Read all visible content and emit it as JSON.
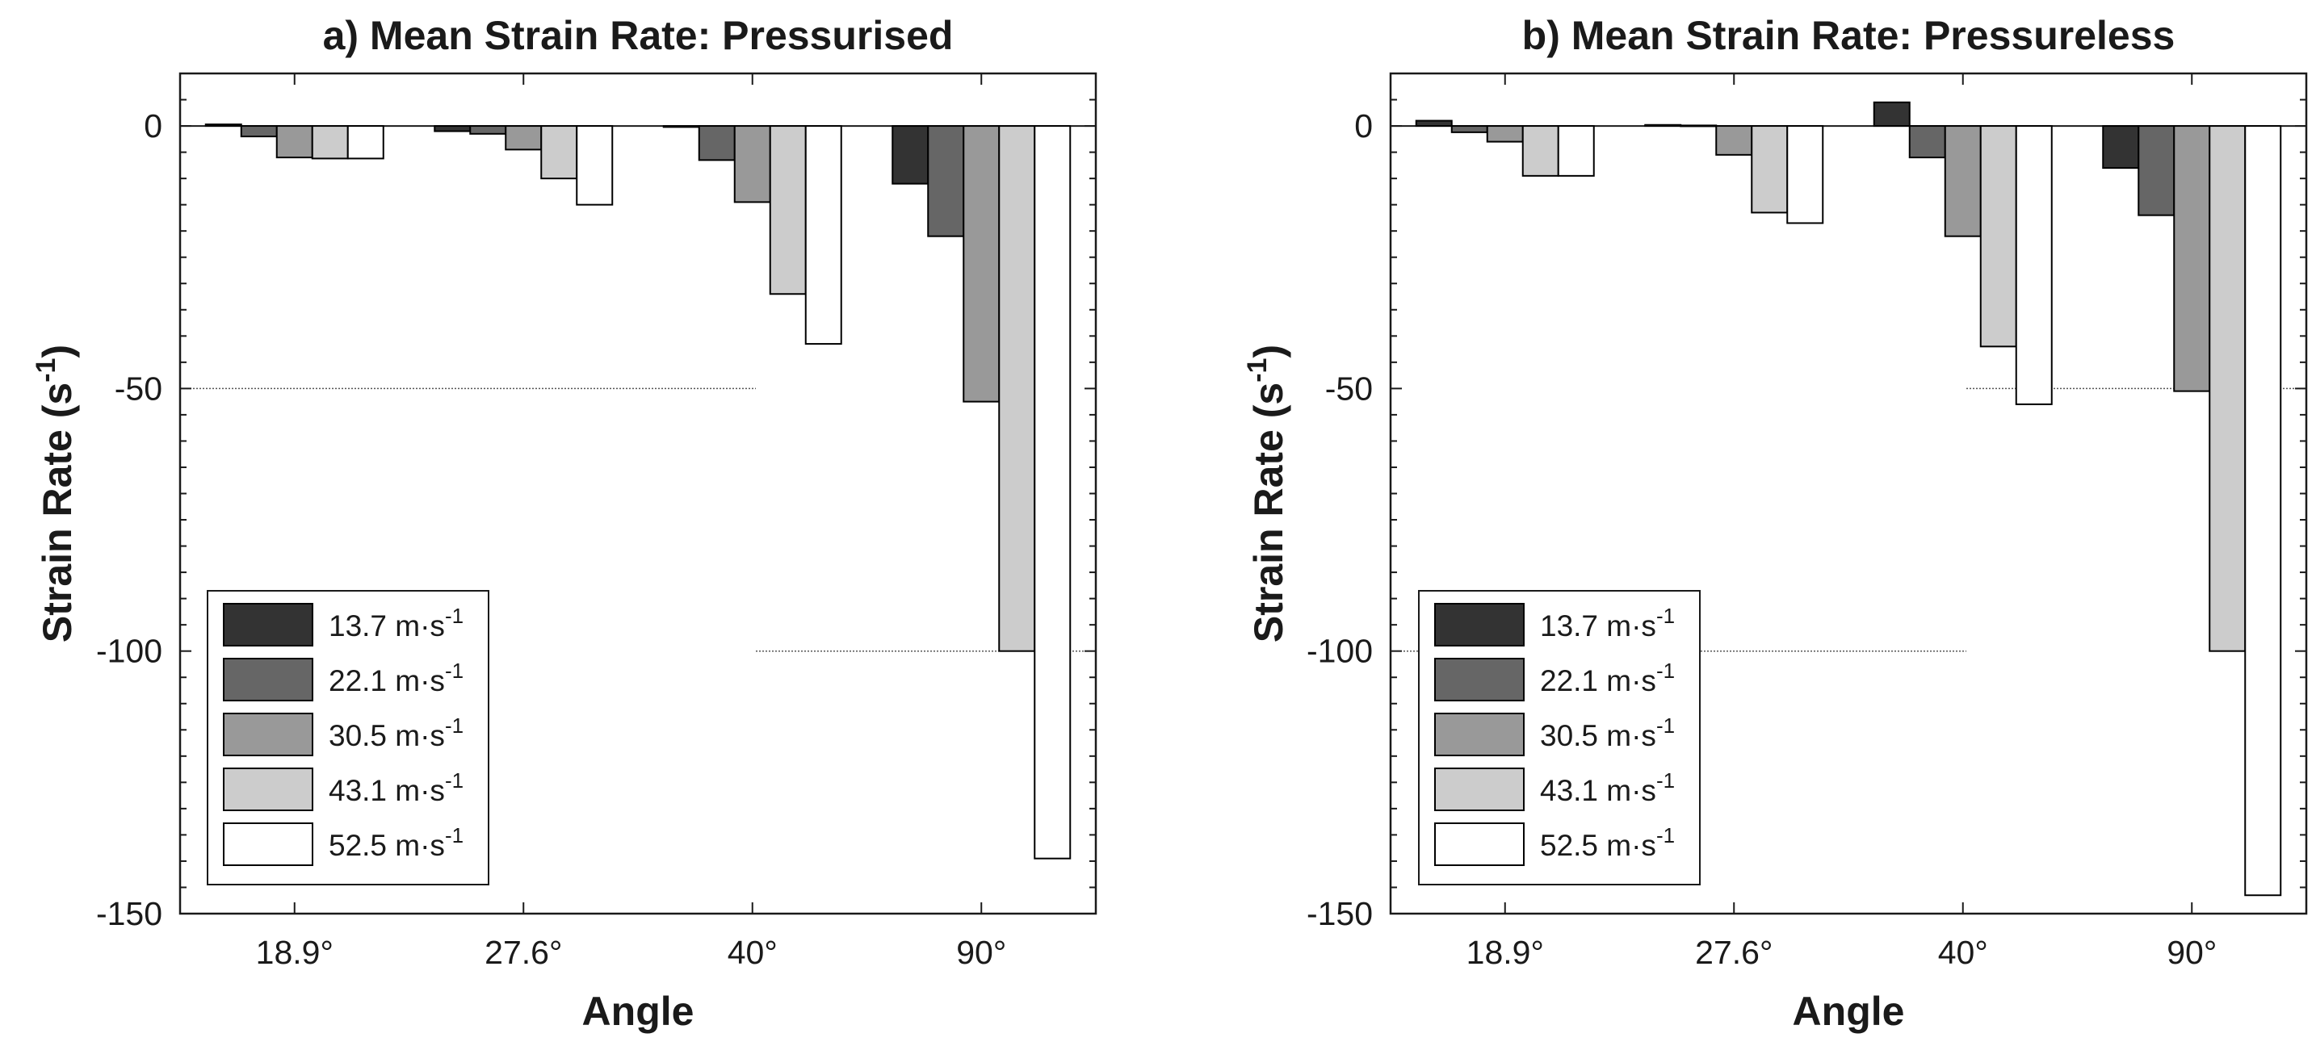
{
  "chart_data": [
    {
      "type": "bar",
      "title": "a) Mean Strain Rate: Pressurised",
      "xlabel": "Angle",
      "ylabel": "Strain Rate (s",
      "ylabel_sup": "-1",
      "ylabel_end": ")",
      "ylim": [
        -150,
        10
      ],
      "yticks": [
        0,
        -50,
        -100,
        -150
      ],
      "ytick_labels": [
        "0",
        "-50",
        "-100",
        "-150"
      ],
      "categories": [
        "18.9°",
        "27.6°",
        "40°",
        "90°"
      ],
      "series": [
        {
          "name": "13.7 m·s",
          "values": [
            0.3,
            -1,
            -0.2,
            -11
          ]
        },
        {
          "name": "22.1 m·s",
          "values": [
            -2,
            -1.5,
            -6.5,
            -21
          ]
        },
        {
          "name": "30.5 m·s",
          "values": [
            -6,
            -4.5,
            -14.5,
            -52.5
          ]
        },
        {
          "name": "43.1 m·s",
          "values": [
            -6.2,
            -10,
            -32,
            -100
          ]
        },
        {
          "name": "52.5 m·s",
          "values": [
            -6.2,
            -15,
            -41.5,
            -139.5
          ]
        }
      ],
      "legend_unit_sup": "-1",
      "legend_location": "bottom-left",
      "reference_lines": [
        -50,
        -100
      ]
    },
    {
      "type": "bar",
      "title": "b) Mean Strain Rate: Pressureless",
      "xlabel": "Angle",
      "ylabel": "Strain Rate (s",
      "ylabel_sup": "-1",
      "ylabel_end": ")",
      "ylim": [
        -150,
        10
      ],
      "yticks": [
        0,
        -50,
        -100,
        -150
      ],
      "ytick_labels": [
        "0",
        "-50",
        "-100",
        "-150"
      ],
      "categories": [
        "18.9°",
        "27.6°",
        "40°",
        "90°"
      ],
      "series": [
        {
          "name": "13.7 m·s",
          "values": [
            1,
            0.2,
            4.5,
            -8
          ]
        },
        {
          "name": "22.1 m·s",
          "values": [
            -1.2,
            0.1,
            -6,
            -17
          ]
        },
        {
          "name": "30.5 m·s",
          "values": [
            -3,
            -5.5,
            -21,
            -50.5
          ]
        },
        {
          "name": "43.1 m·s",
          "values": [
            -9.5,
            -16.5,
            -42,
            -100
          ]
        },
        {
          "name": "52.5 m·s",
          "values": [
            -9.5,
            -18.5,
            -53,
            -146.5
          ]
        }
      ],
      "legend_unit_sup": "-1",
      "legend_location": "bottom-left",
      "reference_lines": [
        -50,
        -100
      ]
    }
  ],
  "colors": {
    "series": [
      "#333333",
      "#666666",
      "#999999",
      "#cccccc",
      "#ffffff"
    ],
    "axis": "#1a1a1a",
    "bar_edge": "#000000",
    "reference_line": "#555555"
  }
}
